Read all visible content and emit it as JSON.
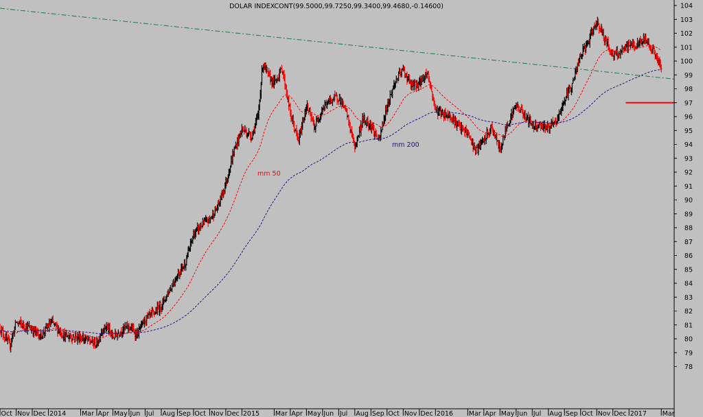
{
  "chart_data": {
    "type": "ohlc",
    "title": "DOLAR INDEXCONT(99.5000,99.7250,99.3400,99.4680,-0.14600)",
    "ylim": [
      77,
      104.5
    ],
    "y_ticks": [
      78,
      79,
      80,
      81,
      82,
      83,
      84,
      85,
      86,
      87,
      88,
      89,
      90,
      91,
      92,
      93,
      94,
      95,
      96,
      97,
      98,
      99,
      100,
      101,
      102,
      103,
      104
    ],
    "x_ticks": [
      "Oct",
      "Nov",
      "Dec",
      "2014",
      "Mar",
      "Apr",
      "May",
      "Jun",
      "Jul",
      "Aug",
      "Sep",
      "Oct",
      "Nov",
      "Dec",
      "2015",
      "Mar",
      "Apr",
      "May",
      "Jun",
      "Jul",
      "Aug",
      "Sep",
      "Oct",
      "Nov",
      "Dec",
      "2016",
      "Mar",
      "Apr",
      "May",
      "Jun",
      "Jul",
      "Aug",
      "Sep",
      "Oct",
      "Nov",
      "Dec",
      "2017",
      "Mar"
    ],
    "x_tick_months": [
      0,
      1,
      2,
      3,
      5,
      6,
      7,
      8,
      9,
      10,
      11,
      12,
      13,
      14,
      15,
      17,
      18,
      19,
      20,
      21,
      22,
      23,
      24,
      25,
      26,
      27,
      29,
      30,
      31,
      32,
      33,
      34,
      35,
      36,
      37,
      38,
      39,
      41
    ],
    "month_range": [
      0,
      41.8
    ],
    "price_path": [
      [
        0,
        80.8
      ],
      [
        0.6,
        79.5
      ],
      [
        1,
        81.2
      ],
      [
        2,
        80.7
      ],
      [
        2.5,
        80.2
      ],
      [
        3.2,
        81.2
      ],
      [
        4,
        80.2
      ],
      [
        5,
        80.1
      ],
      [
        6,
        79.6
      ],
      [
        6.3,
        80.6
      ],
      [
        6.6,
        80.9
      ],
      [
        7,
        80.1
      ],
      [
        7.5,
        80.6
      ],
      [
        8,
        80.9
      ],
      [
        8.5,
        80.3
      ],
      [
        9,
        81.4
      ],
      [
        9.5,
        81.8
      ],
      [
        10,
        82.4
      ],
      [
        10.5,
        83.5
      ],
      [
        11,
        84.6
      ],
      [
        11.5,
        85.5
      ],
      [
        12,
        87.5
      ],
      [
        12.5,
        88.2
      ],
      [
        13,
        88.6
      ],
      [
        13.5,
        89.5
      ],
      [
        14,
        91.2
      ],
      [
        14.5,
        93.5
      ],
      [
        15,
        95.1
      ],
      [
        15.6,
        94.6
      ],
      [
        16,
        96.0
      ],
      [
        16.3,
        99.9
      ],
      [
        16.6,
        99.0
      ],
      [
        17,
        98.4
      ],
      [
        17.5,
        99.5
      ],
      [
        18,
        96.2
      ],
      [
        18.5,
        94.2
      ],
      [
        19,
        96.8
      ],
      [
        19.5,
        95.2
      ],
      [
        20,
        96.6
      ],
      [
        20.5,
        97.2
      ],
      [
        21,
        97.4
      ],
      [
        21.5,
        96.2
      ],
      [
        22,
        93.8
      ],
      [
        22.5,
        95.8
      ],
      [
        23,
        95.4
      ],
      [
        23.5,
        94.2
      ],
      [
        24,
        96.8
      ],
      [
        24.5,
        98.5
      ],
      [
        25,
        99.4
      ],
      [
        25.5,
        98.2
      ],
      [
        26,
        98.4
      ],
      [
        26.5,
        99.2
      ],
      [
        27,
        96.5
      ],
      [
        27.5,
        96.2
      ],
      [
        28,
        96.0
      ],
      [
        28.5,
        95.2
      ],
      [
        29,
        94.8
      ],
      [
        29.5,
        93.5
      ],
      [
        30,
        94.3
      ],
      [
        30.5,
        95.2
      ],
      [
        31,
        93.6
      ],
      [
        31.5,
        95.6
      ],
      [
        32,
        96.8
      ],
      [
        32.5,
        96.2
      ],
      [
        33,
        95.4
      ],
      [
        33.5,
        95.4
      ],
      [
        34,
        95.2
      ],
      [
        34.5,
        95.6
      ],
      [
        35,
        97.2
      ],
      [
        35.5,
        98.4
      ],
      [
        36,
        100.4
      ],
      [
        36.5,
        101.4
      ],
      [
        37,
        102.9
      ],
      [
        37.5,
        101.6
      ],
      [
        38,
        100.4
      ],
      [
        38.5,
        100.6
      ],
      [
        39,
        101.2
      ],
      [
        39.5,
        101.1
      ],
      [
        40,
        101.6
      ],
      [
        40.5,
        100.8
      ],
      [
        41,
        99.47
      ]
    ],
    "seed": 12345,
    "series": [
      {
        "name": "mm 50",
        "color": "#ff0000",
        "window_months": 2.4
      },
      {
        "name": "mm 200",
        "color": "#2a0a8c",
        "window_months": 9.5
      }
    ],
    "trendline": {
      "color": "#147a40",
      "points": [
        [
          0,
          103.8
        ],
        [
          41.8,
          98.7
        ]
      ]
    },
    "support_line": {
      "color": "#ff0000",
      "y": 97.0,
      "x": [
        38.8,
        41.8
      ]
    },
    "annotations": [
      {
        "text": "mm 50",
        "color": "#ff0000"
      },
      {
        "text": "mm 200",
        "color": "#2a0a8c"
      }
    ],
    "legend": "none",
    "grid": false
  }
}
